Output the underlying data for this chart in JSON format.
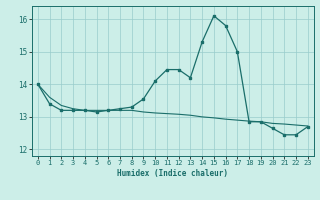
{
  "xlabel": "Humidex (Indice chaleur)",
  "ylabel": "",
  "background_color": "#cceee8",
  "grid_color": "#99cccc",
  "line_color": "#1a6e6a",
  "xlim": [
    -0.5,
    23.5
  ],
  "ylim": [
    11.8,
    16.4
  ],
  "yticks": [
    12,
    13,
    14,
    15,
    16
  ],
  "xticks": [
    0,
    1,
    2,
    3,
    4,
    5,
    6,
    7,
    8,
    9,
    10,
    11,
    12,
    13,
    14,
    15,
    16,
    17,
    18,
    19,
    20,
    21,
    22,
    23
  ],
  "x": [
    0,
    1,
    2,
    3,
    4,
    5,
    6,
    7,
    8,
    9,
    10,
    11,
    12,
    13,
    14,
    15,
    16,
    17,
    18,
    19,
    20,
    21,
    22,
    23
  ],
  "y_main": [
    14.0,
    13.4,
    13.2,
    13.2,
    13.2,
    13.15,
    13.2,
    13.25,
    13.3,
    13.55,
    14.1,
    14.45,
    14.45,
    14.2,
    15.3,
    16.1,
    15.8,
    15.0,
    12.85,
    12.85,
    12.65,
    12.45,
    12.45,
    12.7
  ],
  "y_trend": [
    14.0,
    13.6,
    13.35,
    13.25,
    13.2,
    13.2,
    13.2,
    13.2,
    13.2,
    13.15,
    13.12,
    13.1,
    13.08,
    13.05,
    13.0,
    12.97,
    12.93,
    12.9,
    12.87,
    12.85,
    12.8,
    12.78,
    12.75,
    12.72
  ]
}
